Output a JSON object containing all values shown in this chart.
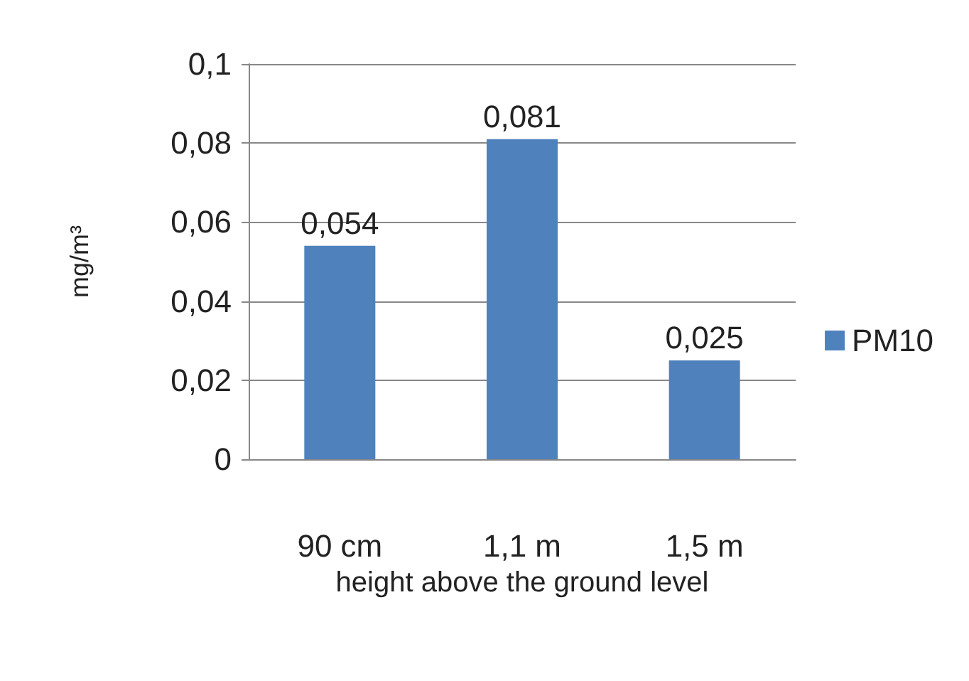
{
  "chart_data": {
    "type": "bar",
    "xlabel": "height above the ground level",
    "ylabel": "mg/m³",
    "categories": [
      "90 cm",
      "1,1 m",
      "1,5 m"
    ],
    "series": [
      {
        "name": "PM10",
        "color": "#4f81bd",
        "values": [
          0.054,
          0.081,
          0.025
        ],
        "value_labels": [
          "0,054",
          "0,081",
          "0,025"
        ]
      }
    ],
    "ylim": [
      0,
      0.1
    ],
    "yticks": [
      {
        "value": 0,
        "label": "0"
      },
      {
        "value": 0.02,
        "label": "0,02"
      },
      {
        "value": 0.04,
        "label": "0,04"
      },
      {
        "value": 0.06,
        "label": "0,06"
      },
      {
        "value": 0.08,
        "label": "0,08"
      },
      {
        "value": 0.1,
        "label": "0,1"
      }
    ],
    "grid": "y",
    "legend": "right"
  }
}
